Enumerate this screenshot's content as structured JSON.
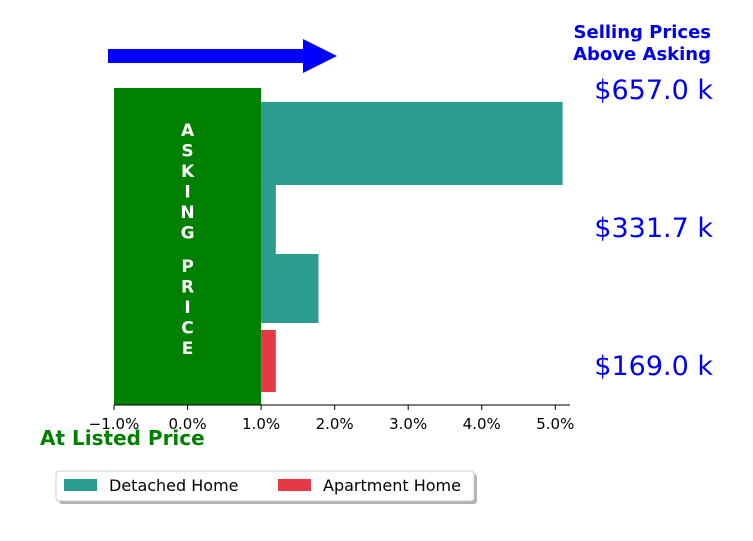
{
  "chart_data": {
    "type": "bar",
    "orientation": "horizontal",
    "xlim": [
      -1.0,
      5.2
    ],
    "xticks": [
      -1.0,
      0.0,
      1.0,
      2.0,
      3.0,
      4.0,
      5.0
    ],
    "xtick_labels": [
      "−1.0%",
      "0.0%",
      "1.0%",
      "2.0%",
      "3.0%",
      "4.0%",
      "5.0%"
    ],
    "asking_price_band": {
      "start": -1.0,
      "end": 1.0,
      "color": "#008000",
      "text": "ASKING PRICE"
    },
    "series": [
      {
        "name": "Detached Home",
        "color": "#2a9d8f",
        "bars": [
          {
            "start": 1.0,
            "end": 5.1
          },
          {
            "start": 1.0,
            "end": 1.2
          },
          {
            "start": 1.0,
            "end": 1.78
          }
        ]
      },
      {
        "name": "Apartment Home",
        "color": "#e63946",
        "bars": [
          {
            "start": 1.0,
            "end": 1.2
          }
        ]
      }
    ],
    "price_labels": [
      "$657.0 k",
      "$331.7 k",
      "$169.0 k"
    ],
    "price_label_color": "#0000ee",
    "top_right_title": [
      "Selling Prices",
      "Above Asking"
    ],
    "top_right_title_color": "#0000ee",
    "bottom_left_title": "At Listed Price",
    "bottom_left_title_color": "#008000",
    "arrow_color": "#0000ff",
    "legend": {
      "placement": "bottom-left",
      "entries": [
        "Detached Home",
        "Apartment Home"
      ]
    }
  }
}
